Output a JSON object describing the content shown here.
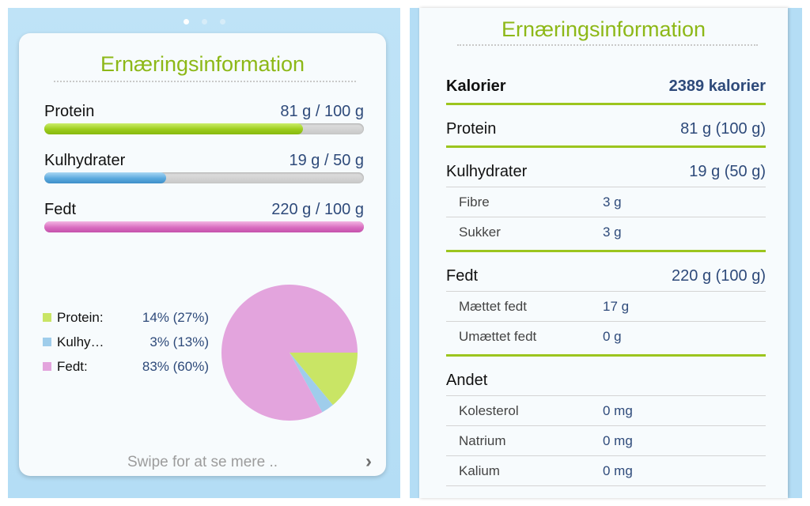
{
  "left": {
    "page_indicator": {
      "count": 3,
      "active_index": 0
    },
    "title": "Ernæringsinformation",
    "macros": [
      {
        "name": "Protein",
        "value": "81 g / 100 g",
        "progress": 0.81,
        "color": "#9ccc1c"
      },
      {
        "name": "Kulhydrater",
        "value": "19 g / 50 g",
        "progress": 0.38,
        "color": "#5ba9de"
      },
      {
        "name": "Fedt",
        "value": "220 g / 100 g",
        "progress": 1.0,
        "color": "#d96dc0"
      }
    ],
    "legend": [
      {
        "label": "Protein:",
        "value": "14% (27%)",
        "color": "#c9e565"
      },
      {
        "label": "Kulhy…",
        "value": "3% (13%)",
        "color": "#9fcdeb"
      },
      {
        "label": "Fedt:",
        "value": "83% (60%)",
        "color": "#e3a4dd"
      }
    ],
    "chart_data": {
      "type": "pie",
      "categories": [
        "Protein",
        "Kulhydrater",
        "Fedt"
      ],
      "values": [
        14,
        3,
        83
      ],
      "colors": [
        "#c9e565",
        "#9fcdeb",
        "#e3a4dd"
      ]
    },
    "swipe_hint": "Swipe for at se mere ..",
    "chevron_icon": "chevron-right-icon"
  },
  "right": {
    "title": "Ernæringsinformation",
    "calories": {
      "name": "Kalorier",
      "value": "2389 kalorier"
    },
    "protein": {
      "name": "Protein",
      "value": "81 g (100 g)"
    },
    "carbs": {
      "name": "Kulhydrater",
      "value": "19 g (50 g)",
      "sub": [
        {
          "name": "Fibre",
          "value": "3 g"
        },
        {
          "name": "Sukker",
          "value": "3 g"
        }
      ]
    },
    "fat": {
      "name": "Fedt",
      "value": "220 g (100 g)",
      "sub": [
        {
          "name": "Mættet fedt",
          "value": "17 g"
        },
        {
          "name": "Umættet fedt",
          "value": "0 g"
        }
      ]
    },
    "other": {
      "name": "Andet",
      "sub": [
        {
          "name": "Kolesterol",
          "value": "0 mg"
        },
        {
          "name": "Natrium",
          "value": "0 mg"
        },
        {
          "name": "Kalium",
          "value": "0 mg"
        }
      ]
    }
  }
}
